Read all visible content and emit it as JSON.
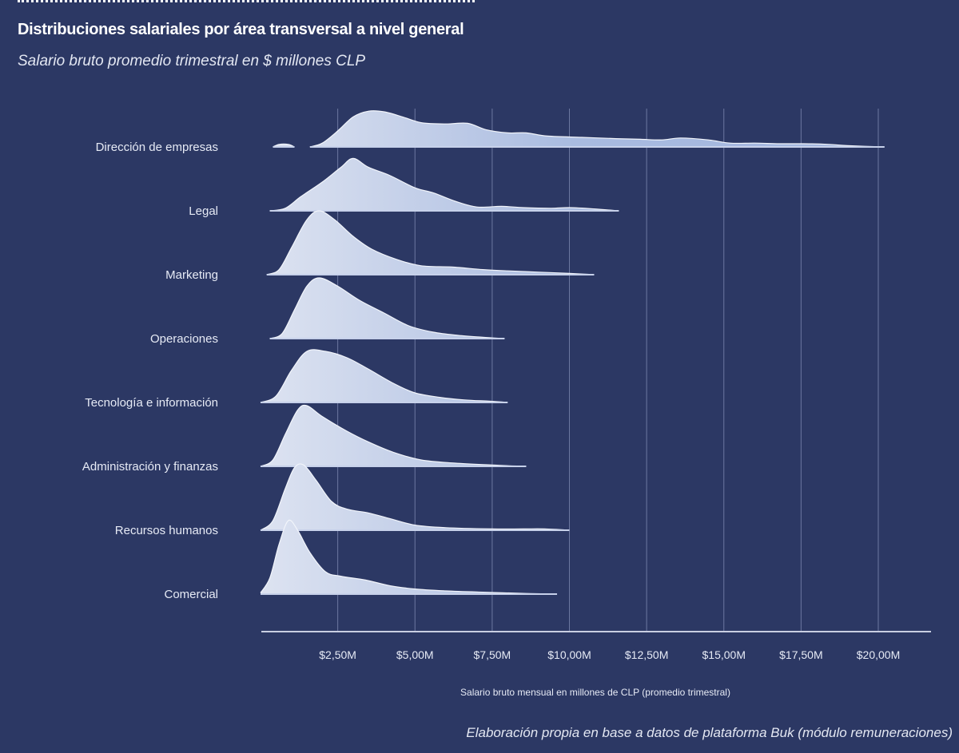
{
  "header": {
    "title": "Distribuciones salariales por área transversal a nivel general",
    "subtitle": "Salario bruto promedio trimestral en $ millones CLP"
  },
  "footer": {
    "source": "Elaboración propia en base a datos de plataforma Buk (módulo remuneraciones)"
  },
  "colors": {
    "background": "#2c3864",
    "ridge_fill_light": "#dde3f1",
    "ridge_fill_dark": "#a3b6de",
    "ridge_stroke": "#f2f5fb",
    "gridline": "#6c77a0",
    "axis": "#c9cfe2"
  },
  "chart_data": {
    "type": "ridgeline",
    "title": "Distribuciones salariales por área transversal a nivel general",
    "subtitle": "Salario bruto promedio trimestral en $ millones CLP",
    "xlabel": "Salario bruto mensual en millones de CLP (promedio trimestral)",
    "ylabel": "",
    "xlim": [
      0,
      21.7
    ],
    "grid": true,
    "x_ticks": [
      2.5,
      5,
      7.5,
      10,
      12.5,
      15,
      17.5,
      20
    ],
    "x_tick_labels": [
      "$2,50M",
      "$5,00M",
      "$7,50M",
      "$10,00M",
      "$12,50M",
      "$15,00M",
      "$17,50M",
      "$20,00M"
    ],
    "categories": [
      "Dirección de empresas",
      "Legal",
      "Marketing",
      "Operaciones",
      "Tecnología e información",
      "Administración y finanzas",
      "Recursos humanos",
      "Comercial"
    ],
    "series": [
      {
        "name": "Dirección de empresas",
        "points": [
          [
            0.4,
            0
          ],
          [
            0.6,
            0.04
          ],
          [
            0.9,
            0.04
          ],
          [
            1.1,
            0
          ],
          [
            1.6,
            0
          ],
          [
            2.0,
            0.06
          ],
          [
            2.5,
            0.25
          ],
          [
            3.0,
            0.47
          ],
          [
            3.5,
            0.56
          ],
          [
            4.0,
            0.55
          ],
          [
            4.6,
            0.47
          ],
          [
            5.2,
            0.38
          ],
          [
            6.0,
            0.36
          ],
          [
            6.7,
            0.37
          ],
          [
            7.3,
            0.27
          ],
          [
            8.0,
            0.22
          ],
          [
            8.6,
            0.22
          ],
          [
            9.3,
            0.17
          ],
          [
            10.4,
            0.15
          ],
          [
            11.5,
            0.13
          ],
          [
            12.3,
            0.12
          ],
          [
            13.0,
            0.11
          ],
          [
            13.6,
            0.14
          ],
          [
            14.5,
            0.11
          ],
          [
            15.2,
            0.06
          ],
          [
            16.0,
            0.06
          ],
          [
            16.8,
            0.05
          ],
          [
            17.6,
            0.05
          ],
          [
            18.4,
            0.04
          ],
          [
            19.0,
            0.02
          ],
          [
            20.2,
            0.0
          ]
        ]
      },
      {
        "name": "Legal",
        "points": [
          [
            0.3,
            0
          ],
          [
            0.8,
            0.04
          ],
          [
            1.3,
            0.22
          ],
          [
            2.0,
            0.45
          ],
          [
            2.6,
            0.68
          ],
          [
            3.0,
            0.82
          ],
          [
            3.5,
            0.68
          ],
          [
            4.2,
            0.55
          ],
          [
            5.0,
            0.36
          ],
          [
            5.6,
            0.28
          ],
          [
            6.3,
            0.15
          ],
          [
            7.0,
            0.06
          ],
          [
            7.8,
            0.07
          ],
          [
            8.5,
            0.05
          ],
          [
            9.4,
            0.04
          ],
          [
            10.0,
            0.05
          ],
          [
            10.8,
            0.03
          ],
          [
            11.6,
            0.0
          ]
        ]
      },
      {
        "name": "Marketing",
        "points": [
          [
            0.2,
            0
          ],
          [
            0.6,
            0.08
          ],
          [
            1.0,
            0.42
          ],
          [
            1.5,
            0.86
          ],
          [
            1.9,
            1.0
          ],
          [
            2.4,
            0.86
          ],
          [
            3.0,
            0.6
          ],
          [
            3.6,
            0.4
          ],
          [
            4.4,
            0.24
          ],
          [
            5.2,
            0.14
          ],
          [
            6.2,
            0.12
          ],
          [
            7.2,
            0.08
          ],
          [
            8.0,
            0.06
          ],
          [
            9.0,
            0.04
          ],
          [
            10.0,
            0.02
          ],
          [
            10.8,
            0.0
          ]
        ]
      },
      {
        "name": "Operaciones",
        "points": [
          [
            0.3,
            0
          ],
          [
            0.7,
            0.08
          ],
          [
            1.1,
            0.45
          ],
          [
            1.5,
            0.82
          ],
          [
            1.9,
            0.95
          ],
          [
            2.5,
            0.82
          ],
          [
            3.2,
            0.6
          ],
          [
            4.0,
            0.4
          ],
          [
            4.8,
            0.2
          ],
          [
            5.6,
            0.1
          ],
          [
            6.4,
            0.05
          ],
          [
            7.2,
            0.02
          ],
          [
            7.9,
            0.0
          ]
        ]
      },
      {
        "name": "Tecnología e información",
        "points": [
          [
            0.0,
            0
          ],
          [
            0.5,
            0.1
          ],
          [
            1.0,
            0.5
          ],
          [
            1.5,
            0.8
          ],
          [
            2.1,
            0.8
          ],
          [
            2.8,
            0.7
          ],
          [
            3.5,
            0.52
          ],
          [
            4.3,
            0.3
          ],
          [
            5.0,
            0.15
          ],
          [
            5.8,
            0.08
          ],
          [
            6.6,
            0.04
          ],
          [
            7.4,
            0.02
          ],
          [
            8.0,
            0.0
          ]
        ]
      },
      {
        "name": "Administración y finanzas",
        "points": [
          [
            0.0,
            0
          ],
          [
            0.4,
            0.1
          ],
          [
            0.8,
            0.5
          ],
          [
            1.2,
            0.88
          ],
          [
            1.5,
            0.95
          ],
          [
            2.0,
            0.78
          ],
          [
            2.8,
            0.55
          ],
          [
            3.5,
            0.38
          ],
          [
            4.3,
            0.22
          ],
          [
            5.2,
            0.1
          ],
          [
            6.3,
            0.05
          ],
          [
            7.5,
            0.02
          ],
          [
            8.6,
            0.0
          ]
        ]
      },
      {
        "name": "Recursos humanos",
        "points": [
          [
            0.0,
            0
          ],
          [
            0.4,
            0.15
          ],
          [
            0.8,
            0.65
          ],
          [
            1.1,
            0.98
          ],
          [
            1.4,
            1.02
          ],
          [
            1.8,
            0.78
          ],
          [
            2.3,
            0.45
          ],
          [
            2.8,
            0.33
          ],
          [
            3.5,
            0.27
          ],
          [
            4.2,
            0.18
          ],
          [
            5.0,
            0.08
          ],
          [
            6.0,
            0.04
          ],
          [
            7.5,
            0.02
          ],
          [
            8.5,
            0.02
          ],
          [
            9.2,
            0.02
          ],
          [
            10.0,
            0.0
          ]
        ]
      },
      {
        "name": "Comercial",
        "points": [
          [
            0.0,
            0.02
          ],
          [
            0.3,
            0.25
          ],
          [
            0.6,
            0.78
          ],
          [
            0.9,
            1.15
          ],
          [
            1.2,
            1.0
          ],
          [
            1.6,
            0.65
          ],
          [
            2.1,
            0.35
          ],
          [
            2.6,
            0.28
          ],
          [
            3.4,
            0.22
          ],
          [
            4.2,
            0.13
          ],
          [
            5.0,
            0.08
          ],
          [
            6.0,
            0.05
          ],
          [
            7.2,
            0.03
          ],
          [
            8.6,
            0.01
          ],
          [
            9.6,
            0.0
          ]
        ]
      }
    ],
    "legend": "none"
  }
}
